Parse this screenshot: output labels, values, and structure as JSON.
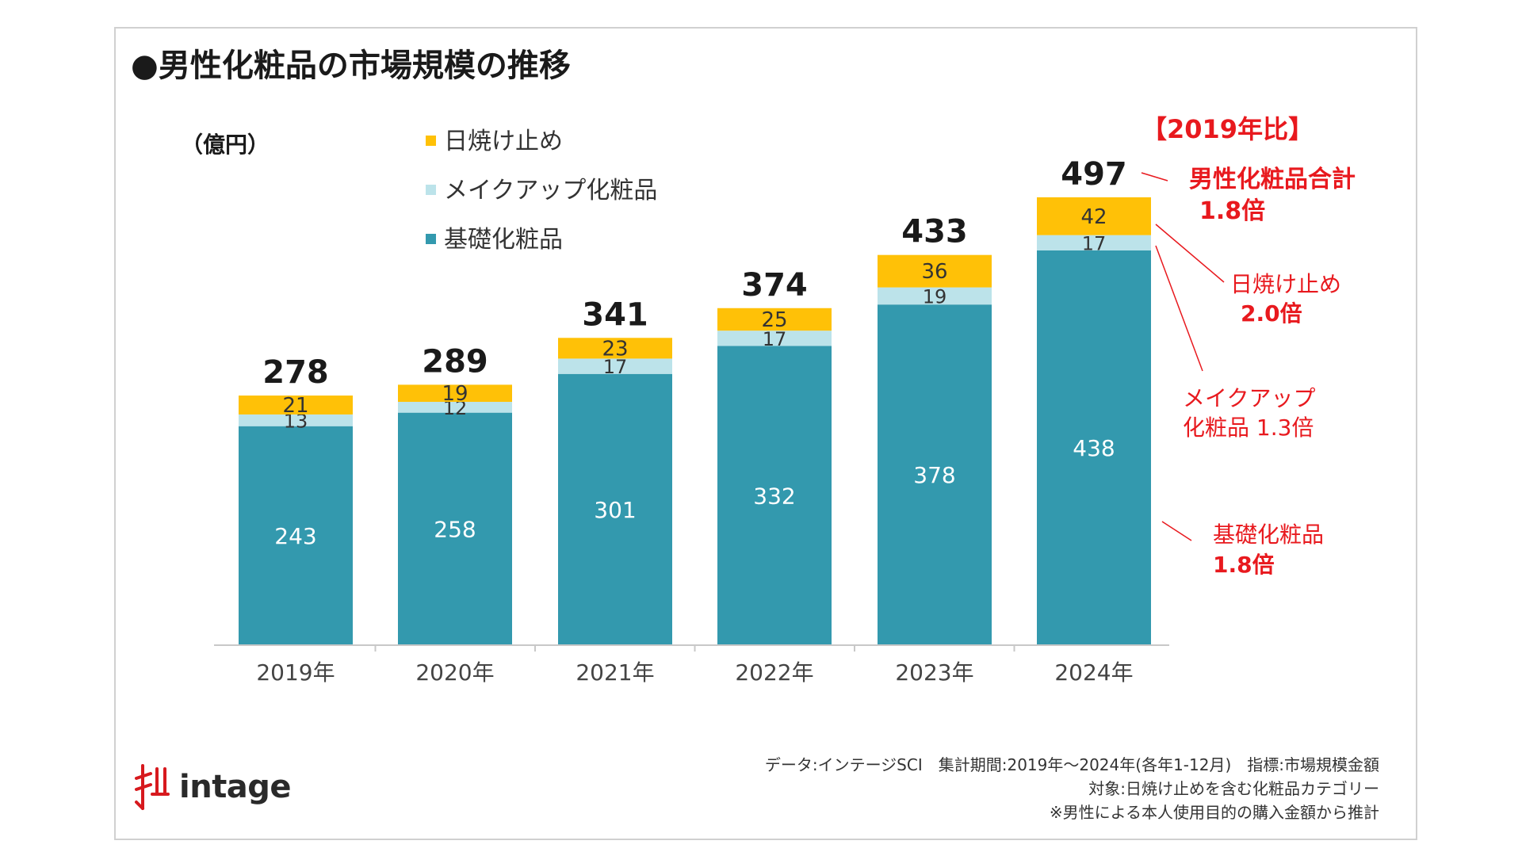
{
  "title": "●男性化粧品の市場規模の推移",
  "unit_label": "（億円）",
  "colors": {
    "sunscreen": "#FFC107",
    "makeup": "#BCE3EA",
    "skincare": "#3399AE",
    "annotation": "#E8191E",
    "axis": "#c8c8c8"
  },
  "chart_data": {
    "type": "bar",
    "stacked": true,
    "categories": [
      "2019年",
      "2020年",
      "2021年",
      "2022年",
      "2023年",
      "2024年"
    ],
    "series": [
      {
        "name": "基礎化粧品",
        "key": "skincare",
        "values": [
          243,
          258,
          301,
          332,
          378,
          438
        ]
      },
      {
        "name": "メイクアップ化粧品",
        "key": "makeup",
        "values": [
          13,
          12,
          17,
          17,
          19,
          17
        ]
      },
      {
        "name": "日焼け止め",
        "key": "sunscreen",
        "values": [
          21,
          19,
          23,
          25,
          36,
          42
        ]
      }
    ],
    "totals": [
      278,
      289,
      341,
      374,
      433,
      497
    ],
    "legend_order": [
      "日焼け止め",
      "メイクアップ化粧品",
      "基礎化粧品"
    ],
    "legend_position": "top-left",
    "ylim": [
      0,
      540
    ],
    "grid": false
  },
  "annotations": {
    "header": "【2019年比】",
    "items": [
      {
        "label": "男性化粧品合計",
        "value": "1.8倍"
      },
      {
        "label": "日焼け止め",
        "value": "2.0倍"
      },
      {
        "label": "メイクアップ",
        "value": "化粧品 1.3倍"
      },
      {
        "label": "基礎化粧品",
        "value": "1.8倍"
      }
    ]
  },
  "logo": {
    "text": "intage"
  },
  "notes": [
    "データ:インテージSCI　集計期間:2019年～2024年(各年1-12月)　指標:市場規模金額",
    "対象:日焼け止めを含む化粧品カテゴリー",
    "※男性による本人使用目的の購入金額から推計"
  ]
}
